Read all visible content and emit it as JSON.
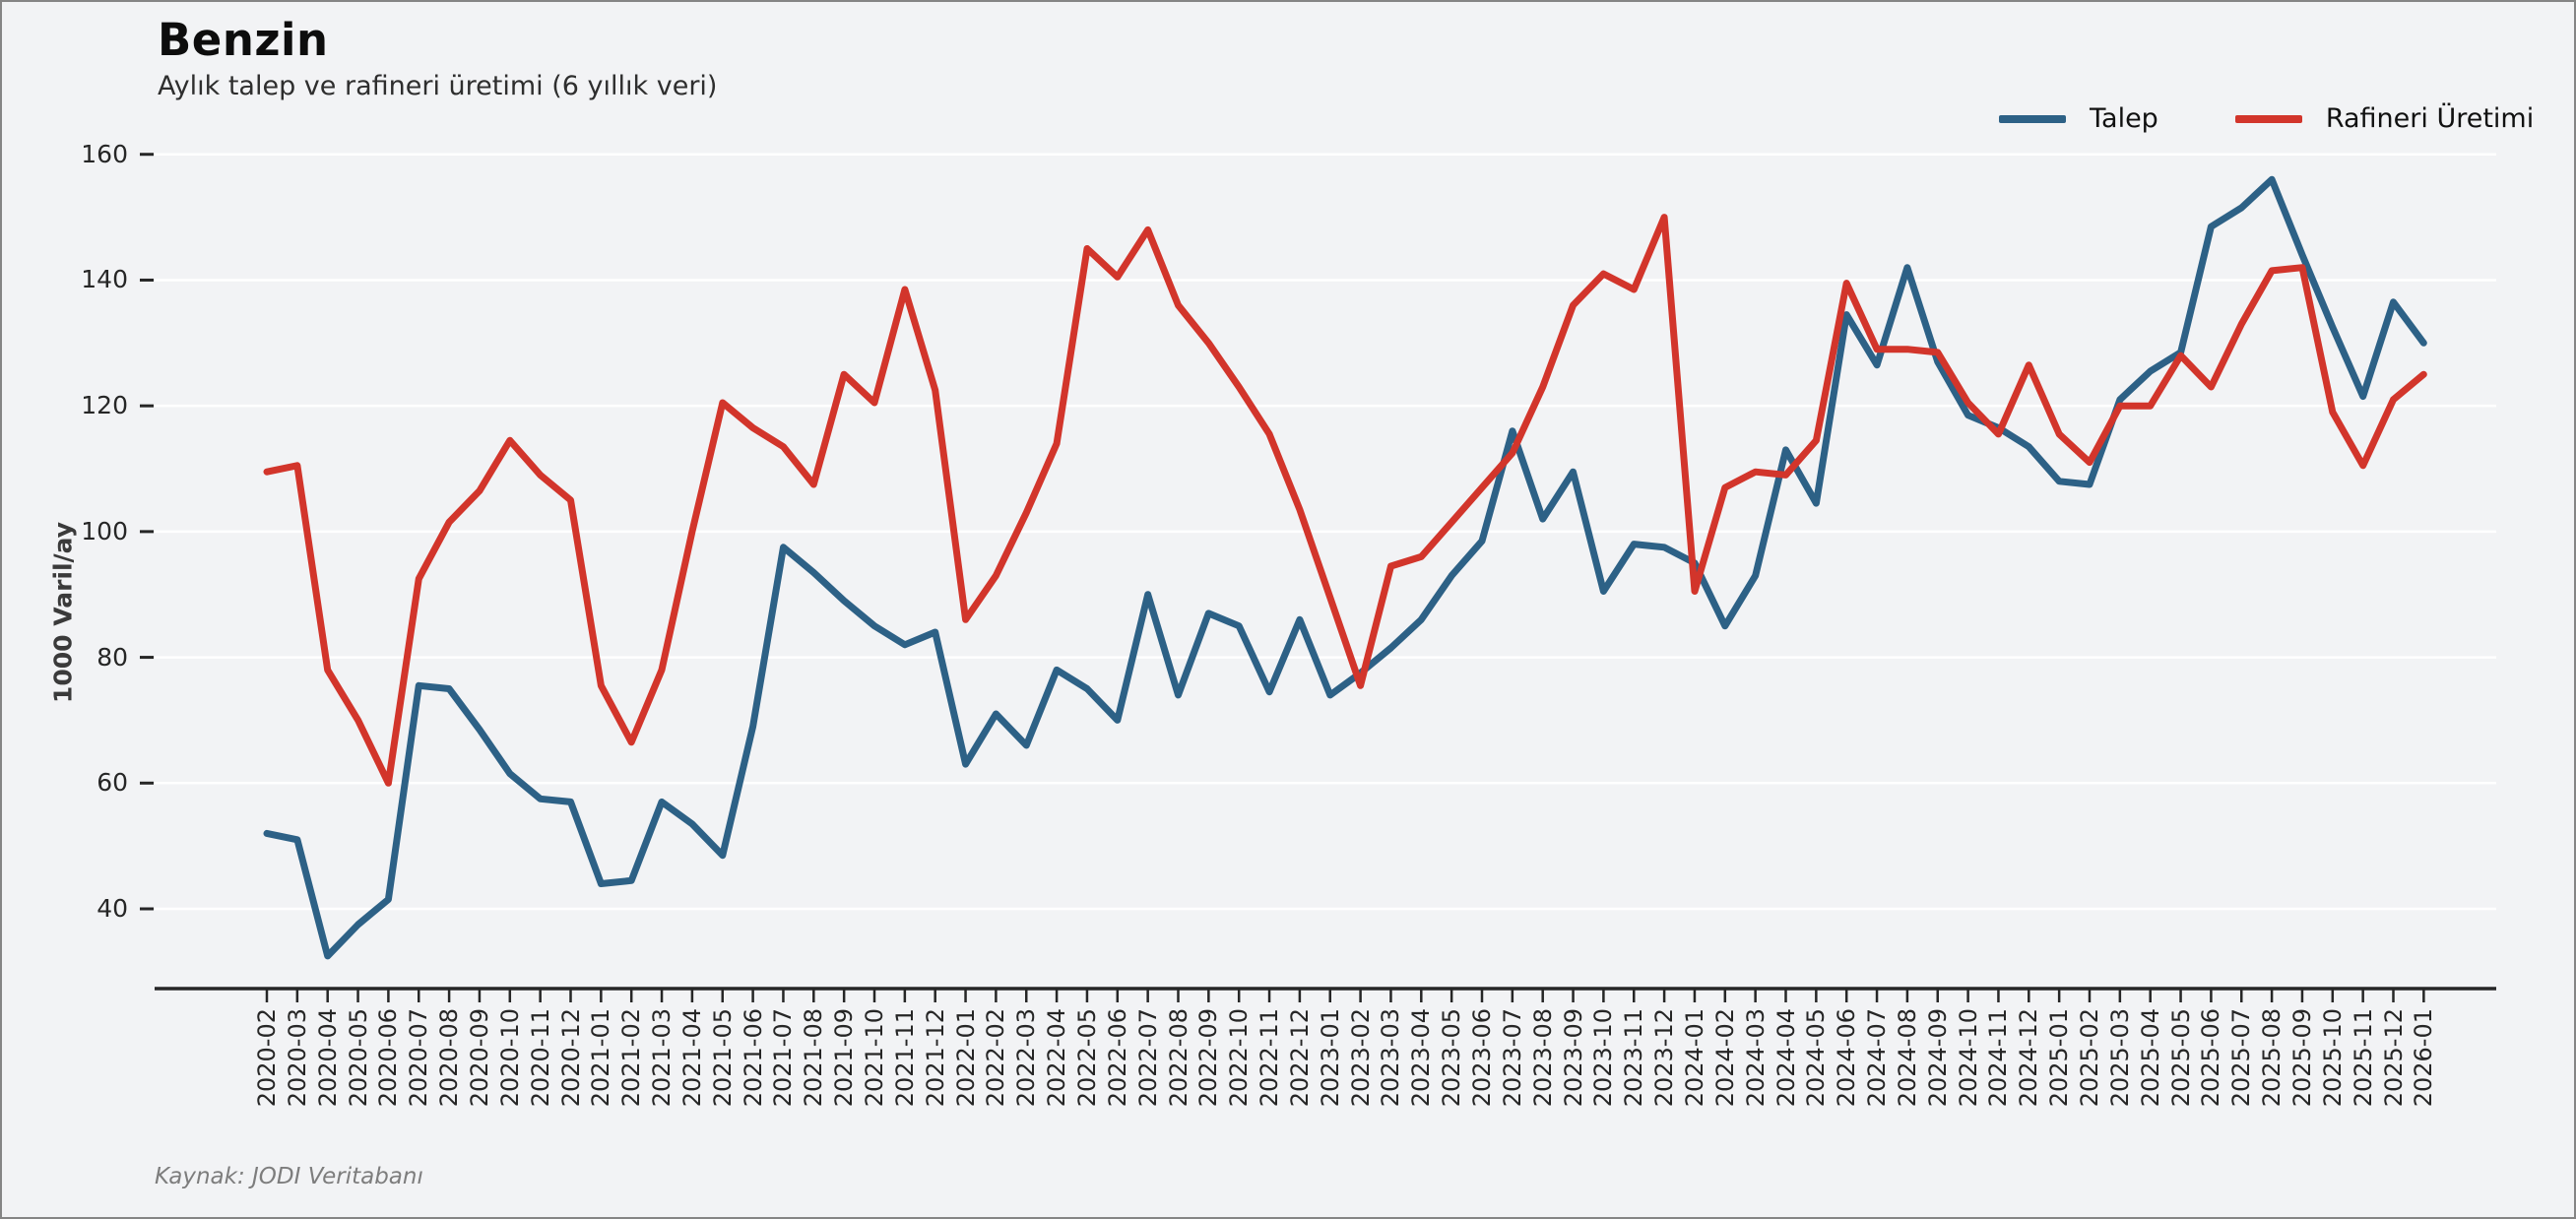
{
  "header": {
    "title": "Benzin",
    "subtitle": "Aylık talep ve rafineri üretimi (6 yıllık veri)"
  },
  "ylabel": "1000 Varil/ay",
  "source": "Kaynak: JODI Veritabanı",
  "legend": [
    {
      "label": "Talep",
      "color": "#2d6186"
    },
    {
      "label": "Rafineri Üretimi",
      "color": "#d2352b"
    }
  ],
  "colors": {
    "background": "#f2f3f5",
    "gridline": "#ffffff",
    "axis": "#262626",
    "talep": "#2d6186",
    "rafineri": "#d2352b"
  },
  "chart_data": {
    "type": "line",
    "title": "Benzin",
    "subtitle": "Aylık talep ve rafineri üretimi (6 yıllık veri)",
    "xlabel": "",
    "ylabel": "1000 Varil/ay",
    "ylim": [
      27,
      172
    ],
    "yticks": [
      40,
      60,
      80,
      100,
      120,
      140,
      160
    ],
    "grid": true,
    "legend_position": "top-right",
    "x": [
      "2020-02",
      "2020-03",
      "2020-04",
      "2020-05",
      "2020-06",
      "2020-07",
      "2020-08",
      "2020-09",
      "2020-10",
      "2020-11",
      "2020-12",
      "2021-01",
      "2021-02",
      "2021-03",
      "2021-04",
      "2021-05",
      "2021-06",
      "2021-07",
      "2021-08",
      "2021-09",
      "2021-10",
      "2021-11",
      "2021-12",
      "2022-01",
      "2022-02",
      "2022-03",
      "2022-04",
      "2022-05",
      "2022-06",
      "2022-07",
      "2022-08",
      "2022-09",
      "2022-10",
      "2022-11",
      "2022-12",
      "2023-01",
      "2023-02",
      "2023-03",
      "2023-04",
      "2023-05",
      "2023-06",
      "2023-07",
      "2023-08",
      "2023-09",
      "2023-10",
      "2023-11",
      "2023-12",
      "2024-01",
      "2024-02",
      "2024-03",
      "2024-04",
      "2024-05",
      "2024-06",
      "2024-07",
      "2024-08",
      "2024-09",
      "2024-10",
      "2024-11",
      "2024-12",
      "2025-01",
      "2025-02",
      "2025-03",
      "2025-04",
      "2025-05",
      "2025-06",
      "2025-07",
      "2025-08",
      "2025-09",
      "2025-10",
      "2025-11",
      "2025-12",
      "2026-01"
    ],
    "series": [
      {
        "name": "Talep",
        "color": "#2d6186",
        "values": [
          52,
          51,
          32.5,
          37.5,
          41.5,
          75.5,
          75,
          68.5,
          61.5,
          57.5,
          57,
          44,
          44.5,
          57,
          53.5,
          48.5,
          69,
          97.5,
          93.5,
          89,
          85,
          82,
          84,
          63,
          71,
          66,
          78,
          75,
          70,
          90,
          74,
          87,
          85,
          74.5,
          86,
          74,
          77.5,
          81.5,
          86,
          93,
          98.5,
          116,
          102,
          109.5,
          90.5,
          98,
          97.5,
          95,
          85,
          93,
          113,
          104.5,
          134.5,
          126.5,
          142,
          127,
          118.5,
          116.5,
          113.5,
          108,
          107.5,
          121,
          125.5,
          128.5,
          148.5,
          151.5,
          156,
          144,
          132.5,
          121.5,
          136.5,
          130
        ]
      },
      {
        "name": "Rafineri Üretimi",
        "color": "#d2352b",
        "values": [
          109.5,
          110.5,
          78,
          70,
          60,
          92.5,
          101.5,
          106.5,
          114.5,
          109,
          105,
          75.5,
          66.5,
          78,
          100,
          120.5,
          116.5,
          113.5,
          107.5,
          125,
          120.5,
          138.5,
          122.5,
          86,
          93,
          103,
          114,
          145,
          140.5,
          148,
          136,
          130,
          123,
          115.5,
          103.5,
          89.5,
          75.5,
          94.5,
          96,
          101.5,
          107,
          112.5,
          123,
          136,
          141,
          138.5,
          150,
          90.5,
          107,
          109.5,
          109,
          114.5,
          139.5,
          129,
          129,
          128.5,
          120.5,
          115.5,
          126.5,
          115.5,
          111,
          120,
          120,
          128,
          123,
          133,
          141.5,
          142,
          119,
          110.5,
          121,
          125
        ]
      }
    ]
  }
}
